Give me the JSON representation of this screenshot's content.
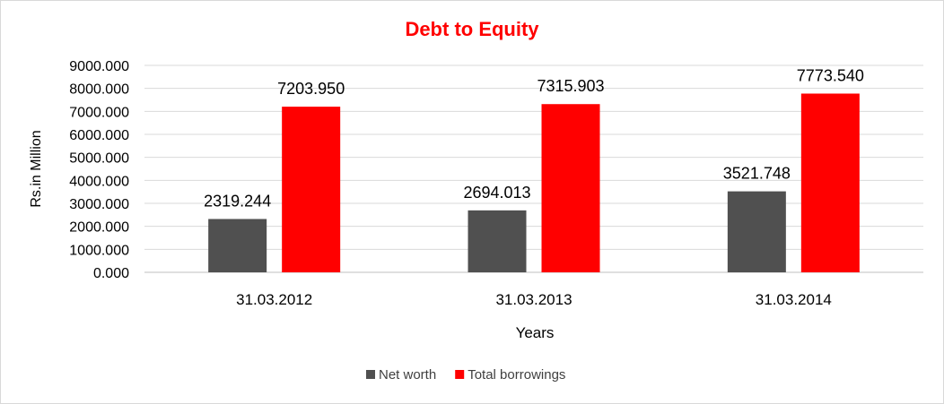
{
  "chart_data": {
    "type": "bar",
    "title": "Debt to Equity",
    "xlabel": "Years",
    "ylabel": "Rs.in Million",
    "categories": [
      "31.03.2012",
      "31.03.2013",
      "31.03.2014"
    ],
    "series": [
      {
        "name": "Net worth",
        "color": "#505050",
        "values": [
          2319.244,
          2694.013,
          3521.748
        ],
        "labels": [
          "2319.244",
          "2694.013",
          "3521.748"
        ]
      },
      {
        "name": "Total borrowings",
        "color": "#ff0000",
        "values": [
          7203.95,
          7315.903,
          7773.54
        ],
        "labels": [
          "7203.950",
          "7315.903",
          "7773.540"
        ]
      }
    ],
    "ylim": [
      0,
      9000
    ],
    "yticks": [
      "0.000",
      "1000.000",
      "2000.000",
      "3000.000",
      "4000.000",
      "5000.000",
      "6000.000",
      "7000.000",
      "8000.000",
      "9000.000"
    ],
    "title_color": "#ff0000",
    "grid": true,
    "legend_position": "bottom"
  }
}
